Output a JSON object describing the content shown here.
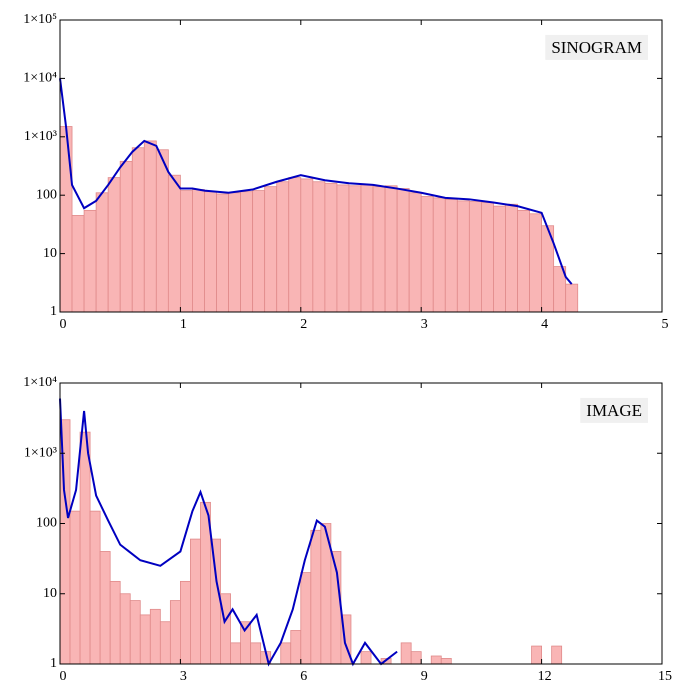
{
  "chart_data": [
    {
      "type": "histogram",
      "annotation": "SINOGRAM",
      "log_y": true,
      "xlim": [
        0,
        5
      ],
      "xticks": [
        0,
        1,
        2,
        3,
        4,
        5
      ],
      "ylim": [
        1,
        100000
      ],
      "yticks": [
        1,
        10,
        100,
        {
          "value": 1000,
          "label": "1×10³"
        },
        {
          "value": 10000,
          "label": "1×10⁴"
        },
        {
          "value": 100000,
          "label": "1×10⁵"
        }
      ],
      "bins": [
        0,
        0.1,
        0.2,
        0.3,
        0.4,
        0.5,
        0.6,
        0.7,
        0.8,
        0.9,
        1.0,
        1.1,
        1.2,
        1.3,
        1.4,
        1.5,
        1.6,
        1.7,
        1.8,
        1.9,
        2.0,
        2.1,
        2.2,
        2.3,
        2.4,
        2.5,
        2.6,
        2.7,
        2.8,
        2.9,
        3.0,
        3.1,
        3.2,
        3.3,
        3.4,
        3.5,
        3.6,
        3.7,
        3.8,
        3.9,
        4.0,
        4.1,
        4.2,
        4.3
      ],
      "counts": [
        1500,
        45,
        55,
        110,
        200,
        380,
        650,
        850,
        600,
        220,
        120,
        125,
        115,
        105,
        110,
        115,
        120,
        140,
        170,
        200,
        190,
        170,
        160,
        150,
        145,
        150,
        140,
        145,
        130,
        110,
        95,
        90,
        85,
        80,
        78,
        75,
        65,
        70,
        55,
        48,
        30,
        6,
        3
      ],
      "color": "#f9b5b5",
      "edge_color": "#e08a8a",
      "line": {
        "color": "#0000c0",
        "x": [
          0,
          0.05,
          0.1,
          0.2,
          0.3,
          0.4,
          0.5,
          0.6,
          0.7,
          0.8,
          0.9,
          1.0,
          1.1,
          1.2,
          1.4,
          1.6,
          1.8,
          2.0,
          2.2,
          2.4,
          2.6,
          2.8,
          3.0,
          3.2,
          3.4,
          3.6,
          3.8,
          4.0,
          4.1,
          4.2,
          4.25
        ],
        "values": [
          10000,
          1500,
          150,
          60,
          80,
          150,
          300,
          550,
          850,
          700,
          250,
          130,
          130,
          120,
          110,
          125,
          170,
          220,
          180,
          160,
          150,
          130,
          110,
          90,
          85,
          75,
          65,
          50,
          15,
          4,
          3
        ]
      }
    },
    {
      "type": "histogram",
      "annotation": "IMAGE",
      "log_y": true,
      "xlim": [
        0,
        15
      ],
      "xticks": [
        0,
        3,
        6,
        9,
        12,
        15
      ],
      "ylim": [
        1,
        10000
      ],
      "yticks": [
        1,
        10,
        100,
        {
          "value": 1000,
          "label": "1×10³"
        },
        {
          "value": 10000,
          "label": "1×10⁴"
        }
      ],
      "bins": [
        0,
        0.25,
        0.5,
        0.75,
        1.0,
        1.25,
        1.5,
        1.75,
        2.0,
        2.25,
        2.5,
        2.75,
        3.0,
        3.25,
        3.5,
        3.75,
        4.0,
        4.25,
        4.5,
        4.75,
        5.0,
        5.25,
        5.5,
        5.75,
        6.0,
        6.25,
        6.5,
        6.75,
        7.0,
        7.25,
        7.5,
        7.75,
        8.0,
        8.25,
        8.5,
        8.75,
        9.0,
        9.25,
        9.5,
        9.75,
        10.0,
        10.25,
        10.5,
        10.75,
        11.0,
        11.25,
        11.5,
        11.75,
        12.0,
        12.25,
        12.5
      ],
      "counts": [
        3000,
        150,
        2000,
        150,
        40,
        15,
        10,
        8,
        5,
        6,
        4,
        8,
        15,
        60,
        200,
        60,
        10,
        2,
        4,
        2,
        1.5,
        1,
        2,
        3,
        20,
        80,
        100,
        40,
        5,
        1,
        1.5,
        1,
        1.2,
        1,
        2,
        1.5,
        1,
        1.3,
        1.2,
        1,
        1,
        1,
        1,
        1,
        1,
        1,
        1,
        1.8,
        1,
        1.8
      ],
      "color": "#f9b5b5",
      "edge_color": "#e08a8a",
      "line": {
        "color": "#0000c0",
        "x": [
          0,
          0.1,
          0.2,
          0.4,
          0.6,
          0.7,
          0.9,
          1.2,
          1.5,
          2.0,
          2.5,
          3.0,
          3.3,
          3.5,
          3.7,
          3.9,
          4.1,
          4.3,
          4.6,
          4.9,
          5.2,
          5.5,
          5.8,
          6.1,
          6.4,
          6.6,
          6.9,
          7.1,
          7.3,
          7.6,
          8.0,
          8.4
        ],
        "values": [
          6000,
          300,
          120,
          300,
          4000,
          1000,
          250,
          110,
          50,
          30,
          25,
          40,
          150,
          280,
          130,
          15,
          4,
          6,
          3,
          5,
          1,
          2,
          6,
          30,
          110,
          90,
          20,
          2,
          1,
          2,
          1,
          1.5
        ]
      }
    }
  ]
}
